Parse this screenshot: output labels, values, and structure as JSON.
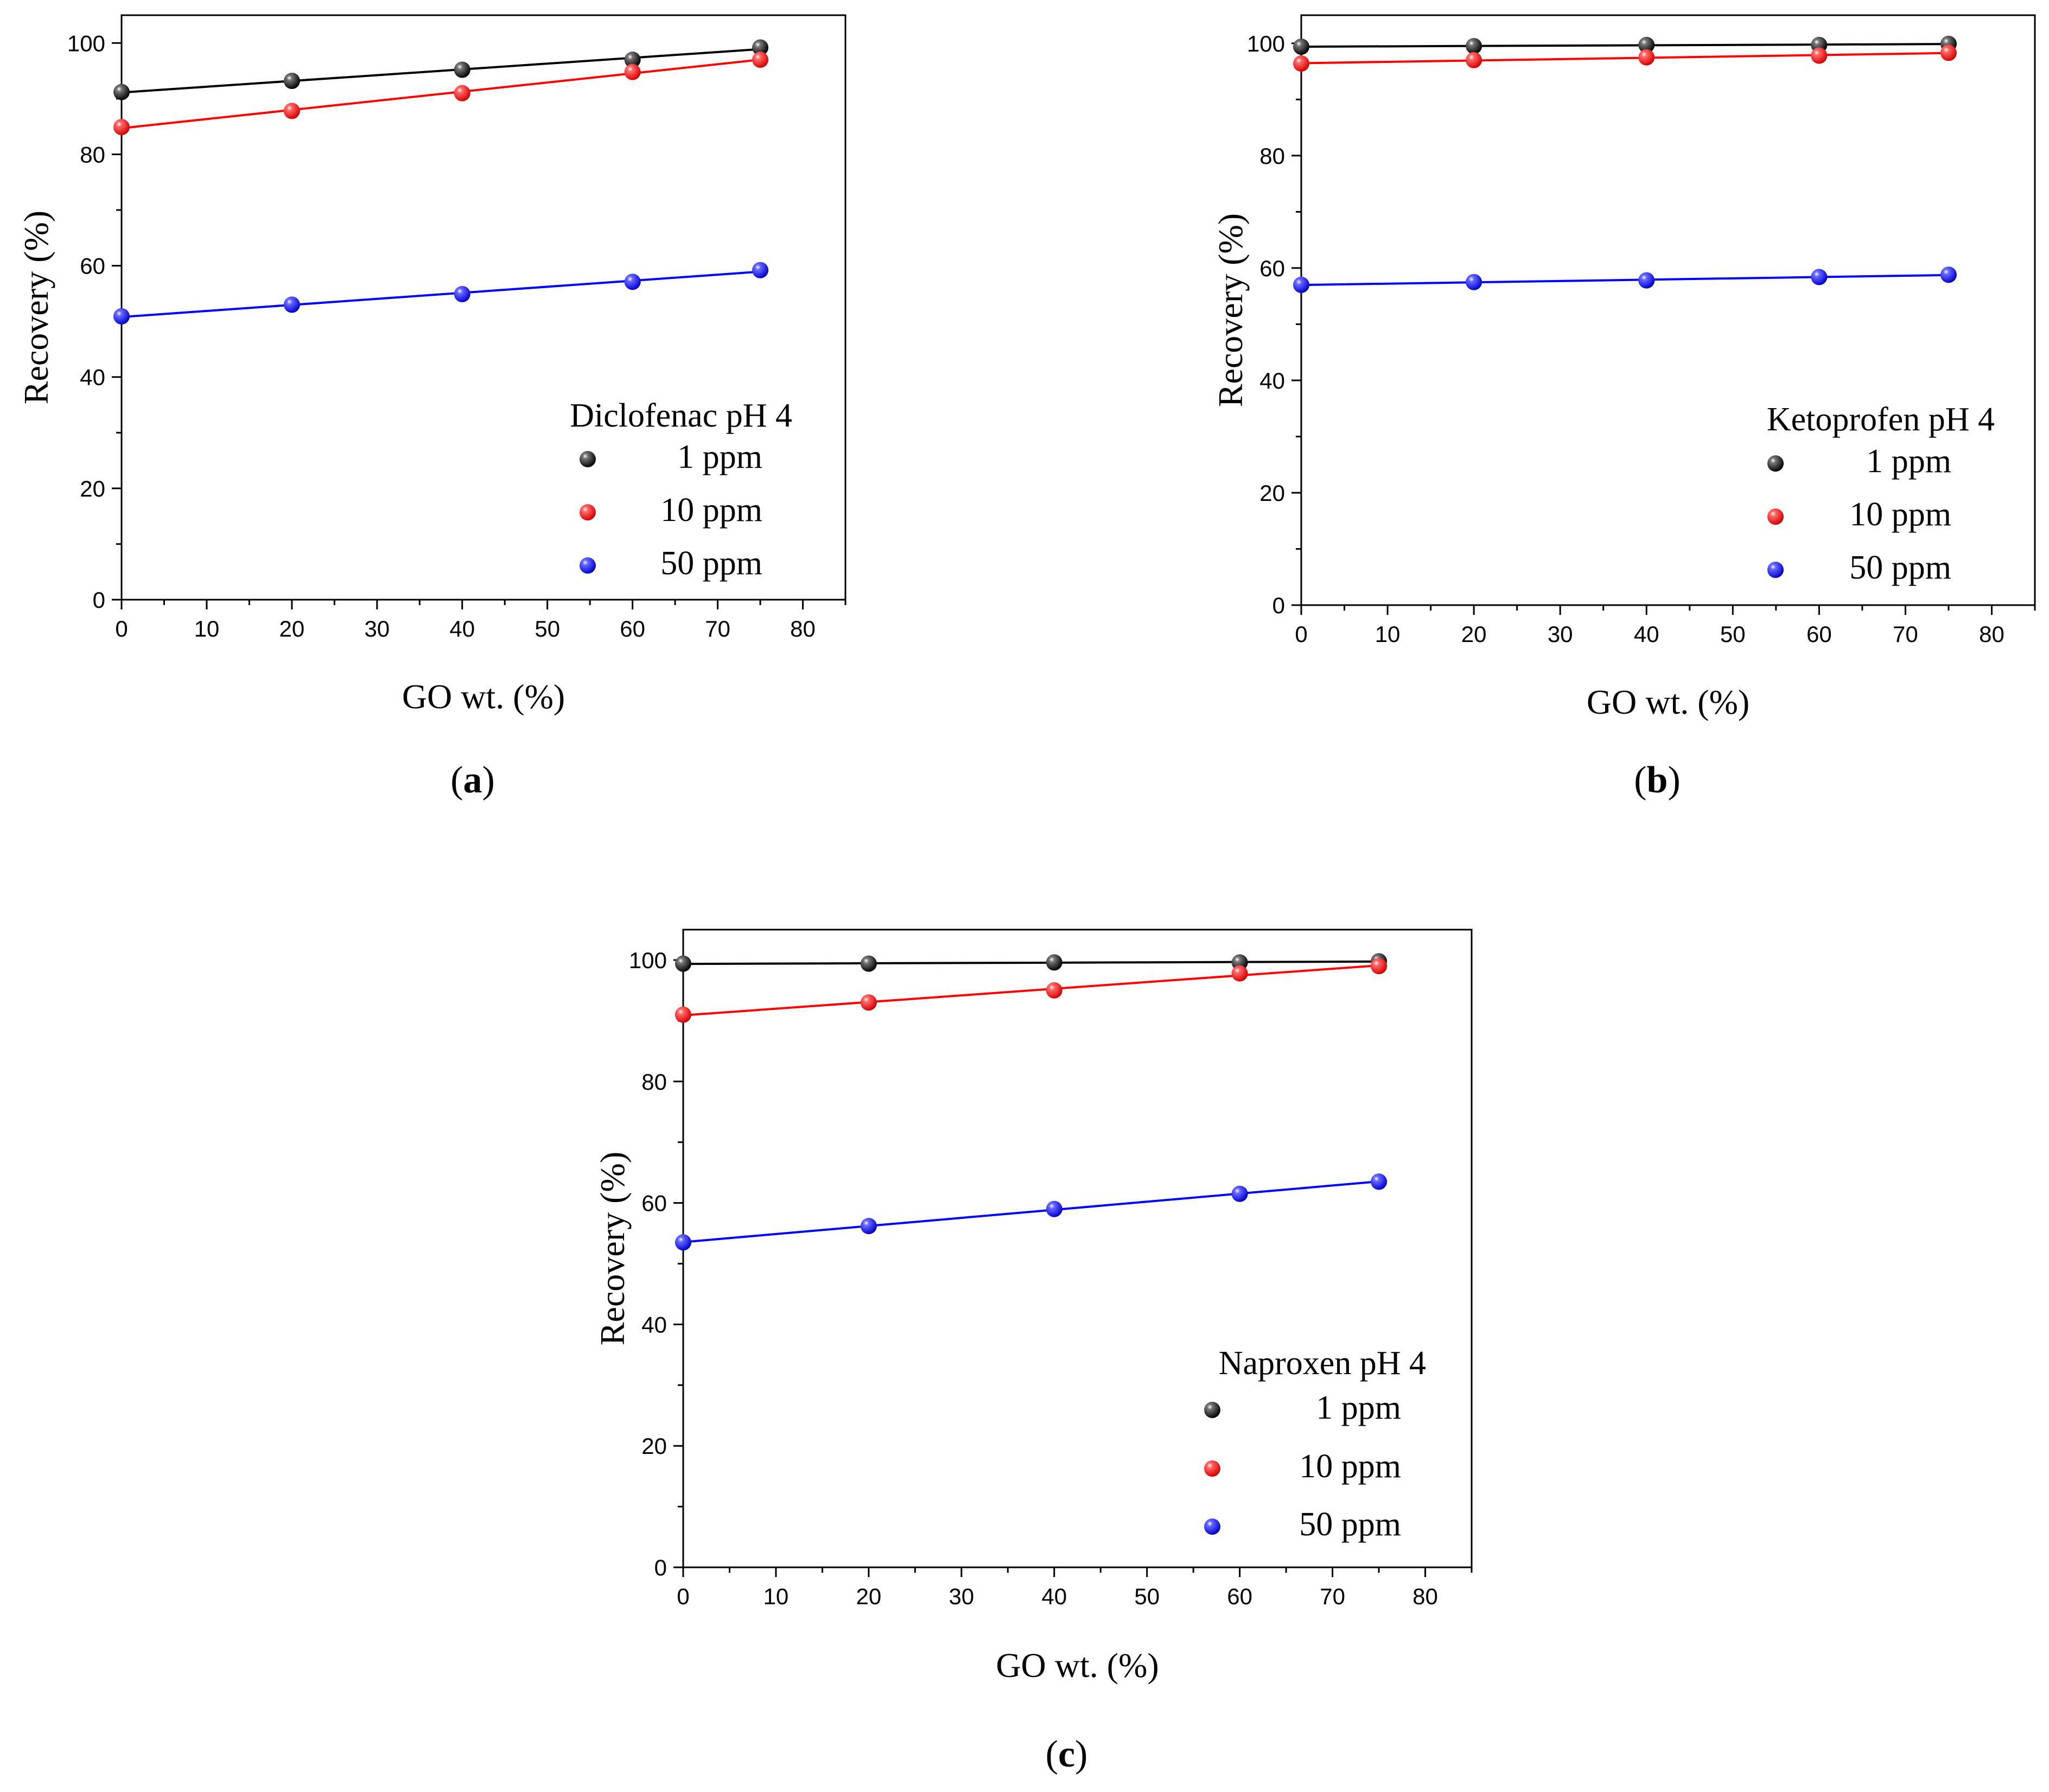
{
  "chart_data": [
    {
      "type": "line",
      "panel_label": "a",
      "legend_title": "Diclofenac pH 4",
      "xlabel": "GO wt. (%)",
      "ylabel": "Recovery (%)",
      "xlim": [
        0,
        85
      ],
      "ylim": [
        0,
        105
      ],
      "xticks": [
        0,
        10,
        20,
        30,
        40,
        50,
        60,
        70,
        80
      ],
      "yticks": [
        0,
        20,
        40,
        60,
        80,
        100
      ],
      "legend_position": "bottom-right",
      "x": [
        0,
        20,
        40,
        60,
        75
      ],
      "series": [
        {
          "name": "1 ppm",
          "color": "#000000",
          "values": [
            91.2,
            93.2,
            95.2,
            97.0,
            99.2
          ]
        },
        {
          "name": "10 ppm",
          "color": "#ff0000",
          "values": [
            84.9,
            87.8,
            91.0,
            94.8,
            97.0
          ]
        },
        {
          "name": "50 ppm",
          "color": "#0000ff",
          "values": [
            50.9,
            53.0,
            54.9,
            57.1,
            59.2
          ]
        }
      ]
    },
    {
      "type": "line",
      "panel_label": "b",
      "legend_title": "Ketoprofen pH 4",
      "xlabel": "GO wt. (%)",
      "ylabel": "Recovery (%)",
      "xlim": [
        0,
        85
      ],
      "ylim": [
        0,
        105
      ],
      "xticks": [
        0,
        10,
        20,
        30,
        40,
        50,
        60,
        70,
        80
      ],
      "yticks": [
        0,
        20,
        40,
        60,
        80,
        100
      ],
      "legend_position": "bottom-right",
      "x": [
        0,
        20,
        40,
        60,
        75
      ],
      "series": [
        {
          "name": "1 ppm",
          "color": "#000000",
          "values": [
            99.4,
            99.5,
            99.7,
            99.7,
            99.9
          ]
        },
        {
          "name": "10 ppm",
          "color": "#ff0000",
          "values": [
            96.4,
            97.0,
            97.5,
            97.8,
            98.3
          ]
        },
        {
          "name": "50 ppm",
          "color": "#0000ff",
          "values": [
            57.0,
            57.5,
            57.8,
            58.4,
            58.8
          ]
        }
      ]
    },
    {
      "type": "line",
      "panel_label": "c",
      "legend_title": "Naproxen pH 4",
      "xlabel": "GO wt. (%)",
      "ylabel": "Recovery (%)",
      "xlim": [
        0,
        85
      ],
      "ylim": [
        0,
        105
      ],
      "xticks": [
        0,
        10,
        20,
        30,
        40,
        50,
        60,
        70,
        80
      ],
      "yticks": [
        0,
        20,
        40,
        60,
        80,
        100
      ],
      "legend_position": "bottom-right",
      "x": [
        0,
        20,
        40,
        60,
        75
      ],
      "series": [
        {
          "name": "1 ppm",
          "color": "#000000",
          "values": [
            99.4,
            99.4,
            99.6,
            99.6,
            99.8
          ]
        },
        {
          "name": "10 ppm",
          "color": "#ff0000",
          "values": [
            91.0,
            93.0,
            95.0,
            97.8,
            99.0
          ]
        },
        {
          "name": "50 ppm",
          "color": "#0000ff",
          "values": [
            53.5,
            56.2,
            59.0,
            61.5,
            63.5
          ]
        }
      ]
    }
  ]
}
